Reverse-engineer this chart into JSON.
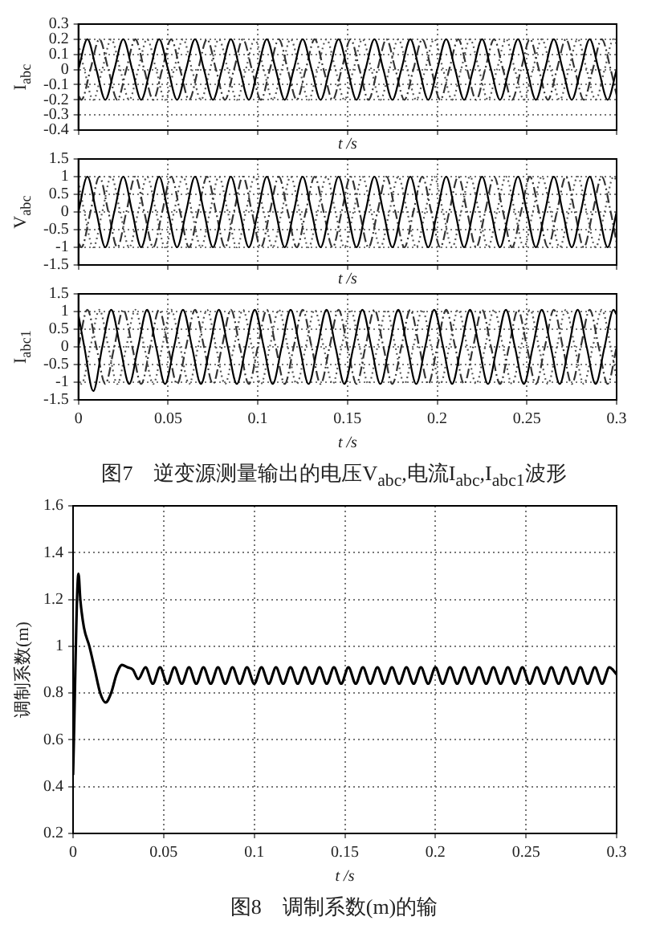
{
  "chart_data": [
    {
      "type": "line",
      "xlabel": "t /s",
      "ylabel": "I$_{abc}$",
      "xlim": [
        0,
        0.3
      ],
      "ylim": [
        -0.4,
        0.3
      ],
      "xticks": [
        0,
        0.05,
        0.1,
        0.15,
        0.2,
        0.25,
        0.3
      ],
      "yticks": [
        -0.4,
        -0.3,
        -0.2,
        -0.1,
        0,
        0.1,
        0.2,
        0.3
      ],
      "grid": true,
      "tick_labels": "y",
      "series": [
        {
          "color": "#000000",
          "line_style": "solid",
          "x": [
            0,
            0.005,
            0.01,
            0.015,
            0.02,
            0.025,
            0.03,
            0.035,
            0.04,
            0.045,
            0.05,
            0.055,
            0.06,
            0.065,
            0.07,
            0.075,
            0.08,
            0.085,
            0.09,
            0.095,
            0.1,
            0.105,
            0.11,
            0.115,
            0.12,
            0.125,
            0.13,
            0.135,
            0.14,
            0.145,
            0.15,
            0.155,
            0.16,
            0.165,
            0.17,
            0.175,
            0.18,
            0.185,
            0.19,
            0.195,
            0.2,
            0.205,
            0.21,
            0.215,
            0.22,
            0.225,
            0.23,
            0.235,
            0.24,
            0.245,
            0.25,
            0.255,
            0.26,
            0.265,
            0.27,
            0.275,
            0.28,
            0.285,
            0.29,
            0.295,
            0.3
          ],
          "values": [
            0,
            0.2,
            0,
            -0.2,
            0,
            0.2,
            0,
            -0.2,
            0,
            0.2,
            0,
            -0.2,
            0,
            0.2,
            0,
            -0.2,
            0,
            0.2,
            0,
            -0.2,
            0,
            0.2,
            0,
            -0.2,
            0,
            0.2,
            0,
            -0.2,
            0,
            0.2,
            0,
            -0.2,
            0,
            0.2,
            0,
            -0.2,
            0,
            0.2,
            0,
            -0.2,
            0,
            0.2,
            0,
            -0.2,
            0,
            0.2,
            0,
            -0.2,
            0,
            0.2,
            0,
            -0.2,
            0,
            0.2,
            0,
            -0.2,
            0,
            0.2,
            0,
            -0.2,
            0
          ]
        },
        {
          "color": "#333333",
          "line_style": "dashed",
          "x": [
            0,
            0.0017,
            0.0067,
            0.0117,
            0.0167,
            0.0217,
            0.0267,
            0.0317,
            0.0367,
            0.0417,
            0.0467,
            0.0517,
            0.0567,
            0.0617,
            0.0667,
            0.0717,
            0.0767,
            0.0817,
            0.0867,
            0.0917,
            0.0967,
            0.1017,
            0.1067,
            0.1117,
            0.1167,
            0.1217,
            0.1267,
            0.1317,
            0.1367,
            0.1417,
            0.1467,
            0.1517,
            0.1567,
            0.1617,
            0.1667,
            0.1717,
            0.1767,
            0.1817,
            0.1867,
            0.1917,
            0.1967,
            0.2017,
            0.2067,
            0.2117,
            0.2167,
            0.2217,
            0.2267,
            0.2317,
            0.2367,
            0.2417,
            0.2467,
            0.2517,
            0.2567,
            0.2617,
            0.2667,
            0.2717,
            0.2767,
            0.2817,
            0.2867,
            0.2917,
            0.2967,
            0.3
          ],
          "values": [
            -0.17,
            -0.2,
            0,
            0.2,
            0,
            -0.2,
            0,
            0.2,
            0,
            -0.2,
            0,
            0.2,
            0,
            -0.2,
            0,
            0.2,
            0,
            -0.2,
            0,
            0.2,
            0,
            -0.2,
            0,
            0.2,
            0,
            -0.2,
            0,
            0.2,
            0,
            -0.2,
            0,
            0.2,
            0,
            -0.2,
            0,
            0.2,
            0,
            -0.2,
            0,
            0.2,
            0,
            -0.2,
            0,
            0.2,
            0,
            -0.2,
            0,
            0.2,
            0,
            -0.2,
            0,
            0.2,
            0,
            -0.2,
            0,
            0.2,
            0,
            -0.2,
            0,
            0.2,
            0,
            -0.17
          ]
        },
        {
          "color": "#555555",
          "line_style": "dotted",
          "x": [
            0,
            0.0033,
            0.0083,
            0.0133,
            0.0183,
            0.0233,
            0.0283,
            0.0333,
            0.0383,
            0.0433,
            0.0483,
            0.0533,
            0.0583,
            0.0633,
            0.0683,
            0.0733,
            0.0783,
            0.0833,
            0.0883,
            0.0933,
            0.0983,
            0.1033,
            0.1083,
            0.1133,
            0.1183,
            0.1233,
            0.1283,
            0.1333,
            0.1383,
            0.1433,
            0.1483,
            0.1533,
            0.1583,
            0.1633,
            0.1683,
            0.1733,
            0.1783,
            0.1833,
            0.1883,
            0.1933,
            0.1983,
            0.2033,
            0.2083,
            0.2133,
            0.2183,
            0.2233,
            0.2283,
            0.2333,
            0.2383,
            0.2433,
            0.2483,
            0.2533,
            0.2583,
            0.2633,
            0.2683,
            0.2733,
            0.2783,
            0.2833,
            0.2883,
            0.2933,
            0.2983,
            0.3
          ],
          "values": [
            0.17,
            0,
            -0.2,
            0,
            0.2,
            0,
            -0.2,
            0,
            0.2,
            0,
            -0.2,
            0,
            0.2,
            0,
            -0.2,
            0,
            0.2,
            0,
            -0.2,
            0,
            0.2,
            0,
            -0.2,
            0,
            0.2,
            0,
            -0.2,
            0,
            0.2,
            0,
            -0.2,
            0,
            0.2,
            0,
            -0.2,
            0,
            0.2,
            0,
            -0.2,
            0,
            0.2,
            0,
            -0.2,
            0,
            0.2,
            0,
            -0.2,
            0,
            0.2,
            0,
            -0.2,
            0,
            0.2,
            0,
            -0.2,
            0,
            0.2,
            0,
            -0.2,
            0,
            0.2,
            0.17
          ]
        }
      ]
    },
    {
      "type": "line",
      "xlabel": "t /s",
      "ylabel": "V$_{abc}$",
      "xlim": [
        0,
        0.3
      ],
      "ylim": [
        -1.5,
        1.5
      ],
      "xticks": [
        0,
        0.05,
        0.1,
        0.15,
        0.2,
        0.25,
        0.3
      ],
      "yticks": [
        -1.5,
        -1,
        -0.5,
        0,
        0.5,
        1,
        1.5
      ],
      "grid": true,
      "tick_labels": "y",
      "series": [
        {
          "color": "#000000",
          "line_style": "solid",
          "x": [
            0,
            0.005,
            0.01,
            0.015,
            0.02,
            0.025,
            0.03,
            0.035,
            0.04,
            0.045,
            0.05,
            0.055,
            0.06,
            0.065,
            0.07,
            0.075,
            0.08,
            0.085,
            0.09,
            0.095,
            0.1,
            0.105,
            0.11,
            0.115,
            0.12,
            0.125,
            0.13,
            0.135,
            0.14,
            0.145,
            0.15,
            0.155,
            0.16,
            0.165,
            0.17,
            0.175,
            0.18,
            0.185,
            0.19,
            0.195,
            0.2,
            0.205,
            0.21,
            0.215,
            0.22,
            0.225,
            0.23,
            0.235,
            0.24,
            0.245,
            0.25,
            0.255,
            0.26,
            0.265,
            0.27,
            0.275,
            0.28,
            0.285,
            0.29,
            0.295,
            0.3
          ],
          "values": [
            0,
            1,
            0,
            -1,
            0,
            1,
            0,
            -1,
            0,
            1,
            0,
            -1,
            0,
            1,
            0,
            -1,
            0,
            1,
            0,
            -1,
            0,
            1,
            0,
            -1,
            0,
            1,
            0,
            -1,
            0,
            1,
            0,
            -1,
            0,
            1,
            0,
            -1,
            0,
            1,
            0,
            -1,
            0,
            1,
            0,
            -1,
            0,
            1,
            0,
            -1,
            0,
            1,
            0,
            -1,
            0,
            1,
            0,
            -1,
            0,
            1,
            0,
            -1,
            0
          ]
        },
        {
          "color": "#333333",
          "line_style": "dashed",
          "x": [
            0,
            0.0017,
            0.0067,
            0.0117,
            0.0167,
            0.0217,
            0.0267,
            0.0317,
            0.0367,
            0.0417,
            0.0467,
            0.0517,
            0.0567,
            0.0617,
            0.0667,
            0.0717,
            0.0767,
            0.0817,
            0.0867,
            0.0917,
            0.0967,
            0.1017,
            0.1067,
            0.1117,
            0.1167,
            0.1217,
            0.1267,
            0.1317,
            0.1367,
            0.1417,
            0.1467,
            0.1517,
            0.1567,
            0.1617,
            0.1667,
            0.1717,
            0.1767,
            0.1817,
            0.1867,
            0.1917,
            0.1967,
            0.2017,
            0.2067,
            0.2117,
            0.2167,
            0.2217,
            0.2267,
            0.2317,
            0.2367,
            0.2417,
            0.2467,
            0.2517,
            0.2567,
            0.2617,
            0.2667,
            0.2717,
            0.2767,
            0.2817,
            0.2867,
            0.2917,
            0.2967,
            0.3
          ],
          "values": [
            -0.87,
            -1,
            0,
            1,
            0,
            -1,
            0,
            1,
            0,
            -1,
            0,
            1,
            0,
            -1,
            0,
            1,
            0,
            -1,
            0,
            1,
            0,
            -1,
            0,
            1,
            0,
            -1,
            0,
            1,
            0,
            -1,
            0,
            1,
            0,
            -1,
            0,
            1,
            0,
            -1,
            0,
            1,
            0,
            -1,
            0,
            1,
            0,
            -1,
            0,
            1,
            0,
            -1,
            0,
            1,
            0,
            -1,
            0,
            1,
            0,
            -1,
            0,
            1,
            0,
            -0.87
          ]
        },
        {
          "color": "#555555",
          "line_style": "dotted",
          "x": [
            0,
            0.0033,
            0.0083,
            0.0133,
            0.0183,
            0.0233,
            0.0283,
            0.0333,
            0.0383,
            0.0433,
            0.0483,
            0.0533,
            0.0583,
            0.0633,
            0.0683,
            0.0733,
            0.0783,
            0.0833,
            0.0883,
            0.0933,
            0.0983,
            0.1033,
            0.1083,
            0.1133,
            0.1183,
            0.1233,
            0.1283,
            0.1333,
            0.1383,
            0.1433,
            0.1483,
            0.1533,
            0.1583,
            0.1633,
            0.1683,
            0.1733,
            0.1783,
            0.1833,
            0.1883,
            0.1933,
            0.1983,
            0.2033,
            0.2083,
            0.2133,
            0.2183,
            0.2233,
            0.2283,
            0.2333,
            0.2383,
            0.2433,
            0.2483,
            0.2533,
            0.2583,
            0.2633,
            0.2683,
            0.2733,
            0.2783,
            0.2833,
            0.2883,
            0.2933,
            0.2983,
            0.3
          ],
          "values": [
            0.87,
            0,
            -1,
            0,
            1,
            0,
            -1,
            0,
            1,
            0,
            -1,
            0,
            1,
            0,
            -1,
            0,
            1,
            0,
            -1,
            0,
            1,
            0,
            -1,
            0,
            1,
            0,
            -1,
            0,
            1,
            0,
            -1,
            0,
            1,
            0,
            -1,
            0,
            1,
            0,
            -1,
            0,
            1,
            0,
            -1,
            0,
            1,
            0,
            -1,
            0,
            1,
            0,
            -1,
            0,
            1,
            0,
            -1,
            0,
            1,
            0,
            -1,
            0,
            1,
            0.87
          ]
        }
      ]
    },
    {
      "type": "line",
      "xlabel": "t /s",
      "ylabel": "I$_{abc1}$",
      "xlim": [
        0,
        0.3
      ],
      "ylim": [
        -1.5,
        1.5
      ],
      "xticks": [
        0,
        0.05,
        0.1,
        0.15,
        0.2,
        0.25,
        0.3
      ],
      "yticks": [
        -1.5,
        -1,
        -0.5,
        0,
        0.5,
        1,
        1.5
      ],
      "grid": true,
      "annotations": [
        "图7　逆变源测量输出的电压V$_{abc}$,电流I$_{abc}$,I$_{abc1}$波形"
      ],
      "series": [
        {
          "color": "#000000",
          "line_style": "solid",
          "x": [
            0,
            0.0033,
            0.0083,
            0.0133,
            0.0183,
            0.0233,
            0.0283,
            0.0333,
            0.0383,
            0.0433,
            0.0483,
            0.0533,
            0.0583,
            0.0633,
            0.0683,
            0.0733,
            0.0783,
            0.0833,
            0.0883,
            0.0933,
            0.0983,
            0.1033,
            0.1083,
            0.1133,
            0.1183,
            0.1233,
            0.1283,
            0.1333,
            0.1383,
            0.1433,
            0.1483,
            0.1533,
            0.1583,
            0.1633,
            0.1683,
            0.1733,
            0.1783,
            0.1833,
            0.1883,
            0.1933,
            0.1983,
            0.2033,
            0.2083,
            0.2133,
            0.2183,
            0.2233,
            0.2283,
            0.2333,
            0.2383,
            0.2433,
            0.2483,
            0.2533,
            0.2583,
            0.2633,
            0.2683,
            0.2733,
            0.2783,
            0.2833,
            0.2883,
            0.2933,
            0.2983,
            0.3
          ],
          "values": [
            0.91,
            0,
            -1.25,
            0,
            1.05,
            0,
            -1.05,
            0,
            1.05,
            0,
            -1.05,
            0,
            1.05,
            0,
            -1.05,
            0,
            1.05,
            0,
            -1.05,
            0,
            1.05,
            0,
            -1.05,
            0,
            1.05,
            0,
            -1.05,
            0,
            1.05,
            0,
            -1.05,
            0,
            1.05,
            0,
            -1.05,
            0,
            1.05,
            0,
            -1.05,
            0,
            1.05,
            0,
            -1.05,
            0,
            1.05,
            0,
            -1.05,
            0,
            1.05,
            0,
            -1.05,
            0,
            1.05,
            0,
            -1.05,
            0,
            1.05,
            0,
            -1.05,
            0,
            1.05,
            0.91
          ]
        },
        {
          "color": "#333333",
          "line_style": "dashed",
          "x": [
            0,
            0.005,
            0.01,
            0.015,
            0.02,
            0.025,
            0.03,
            0.035,
            0.04,
            0.045,
            0.05,
            0.055,
            0.06,
            0.065,
            0.07,
            0.075,
            0.08,
            0.085,
            0.09,
            0.095,
            0.1,
            0.105,
            0.11,
            0.115,
            0.12,
            0.125,
            0.13,
            0.135,
            0.14,
            0.145,
            0.15,
            0.155,
            0.16,
            0.165,
            0.17,
            0.175,
            0.18,
            0.185,
            0.19,
            0.195,
            0.2,
            0.205,
            0.21,
            0.215,
            0.22,
            0.225,
            0.23,
            0.235,
            0.24,
            0.245,
            0.25,
            0.255,
            0.26,
            0.265,
            0.27,
            0.275,
            0.28,
            0.285,
            0.29,
            0.295,
            0.3
          ],
          "values": [
            0,
            1.05,
            0,
            -1.05,
            0,
            1.05,
            0,
            -1.05,
            0,
            1.05,
            0,
            -1.05,
            0,
            1.05,
            0,
            -1.05,
            0,
            1.05,
            0,
            -1.05,
            0,
            1.05,
            0,
            -1.05,
            0,
            1.05,
            0,
            -1.05,
            0,
            1.05,
            0,
            -1.05,
            0,
            1.05,
            0,
            -1.05,
            0,
            1.05,
            0,
            -1.05,
            0,
            1.05,
            0,
            -1.05,
            0,
            1.05,
            0,
            -1.05,
            0,
            1.05,
            0,
            -1.05,
            0,
            1.05,
            0,
            -1.05,
            0,
            1.05,
            0,
            -1.05,
            0
          ]
        },
        {
          "color": "#555555",
          "line_style": "dotted",
          "x": [
            0,
            0.0017,
            0.0067,
            0.0117,
            0.0167,
            0.0217,
            0.0267,
            0.0317,
            0.0367,
            0.0417,
            0.0467,
            0.0517,
            0.0567,
            0.0617,
            0.0667,
            0.0717,
            0.0767,
            0.0817,
            0.0867,
            0.0917,
            0.0967,
            0.1017,
            0.1067,
            0.1117,
            0.1167,
            0.1217,
            0.1267,
            0.1317,
            0.1367,
            0.1417,
            0.1467,
            0.1517,
            0.1567,
            0.1617,
            0.1667,
            0.1717,
            0.1767,
            0.1817,
            0.1867,
            0.1917,
            0.1967,
            0.2017,
            0.2067,
            0.2117,
            0.2167,
            0.2217,
            0.2267,
            0.2317,
            0.2367,
            0.2417,
            0.2467,
            0.2517,
            0.2567,
            0.2617,
            0.2667,
            0.2717,
            0.2767,
            0.2817,
            0.2867,
            0.2917,
            0.2967,
            0.3
          ],
          "values": [
            -0.91,
            -1.05,
            0,
            1.05,
            0,
            -1.05,
            0,
            1.05,
            0,
            -1.05,
            0,
            1.05,
            0,
            -1.05,
            0,
            1.05,
            0,
            -1.05,
            0,
            1.05,
            0,
            -1.05,
            0,
            1.05,
            0,
            -1.05,
            0,
            1.05,
            0,
            -1.05,
            0,
            1.05,
            0,
            -1.05,
            0,
            1.05,
            0,
            -1.05,
            0,
            1.05,
            0,
            -1.05,
            0,
            1.05,
            0,
            -1.05,
            0,
            1.05,
            0,
            -1.05,
            0,
            1.05,
            0,
            -1.05,
            0,
            1.05,
            0,
            -1.05,
            0,
            1.05,
            0,
            -0.91
          ]
        }
      ]
    },
    {
      "type": "line",
      "xlabel": "t /s",
      "ylabel": "调制系数(m)",
      "xlim": [
        0,
        0.3
      ],
      "ylim": [
        0.2,
        1.6
      ],
      "xticks": [
        0,
        0.05,
        0.1,
        0.15,
        0.2,
        0.25,
        0.3
      ],
      "yticks": [
        0.2,
        0.4,
        0.6,
        0.8,
        1,
        1.2,
        1.4,
        1.6
      ],
      "grid": true,
      "annotations": [
        "图8　调制系数(m)的输"
      ],
      "series": [
        {
          "color": "#000000",
          "line_style": "solid",
          "x": [
            0,
            0.003,
            0.004,
            0.006,
            0.009,
            0.012,
            0.015,
            0.018,
            0.021,
            0.024,
            0.027,
            0.03,
            0.033,
            0.036,
            0.04,
            0.044,
            0.048,
            0.052,
            0.056,
            0.06,
            0.064,
            0.068,
            0.072,
            0.076,
            0.08,
            0.084,
            0.088,
            0.092,
            0.096,
            0.1,
            0.104,
            0.108,
            0.112,
            0.116,
            0.12,
            0.124,
            0.128,
            0.132,
            0.136,
            0.14,
            0.144,
            0.148,
            0.152,
            0.156,
            0.16,
            0.164,
            0.168,
            0.172,
            0.176,
            0.18,
            0.184,
            0.188,
            0.192,
            0.196,
            0.2,
            0.204,
            0.208,
            0.212,
            0.216,
            0.22,
            0.224,
            0.228,
            0.232,
            0.236,
            0.24,
            0.244,
            0.248,
            0.252,
            0.256,
            0.26,
            0.264,
            0.268,
            0.272,
            0.276,
            0.28,
            0.284,
            0.288,
            0.292,
            0.296,
            0.3
          ],
          "values": [
            0.45,
            1.31,
            1.2,
            1.08,
            1.0,
            0.9,
            0.8,
            0.76,
            0.8,
            0.88,
            0.92,
            0.91,
            0.9,
            0.86,
            0.91,
            0.84,
            0.91,
            0.84,
            0.91,
            0.84,
            0.91,
            0.84,
            0.91,
            0.84,
            0.91,
            0.84,
            0.91,
            0.84,
            0.91,
            0.84,
            0.91,
            0.84,
            0.91,
            0.84,
            0.91,
            0.84,
            0.91,
            0.84,
            0.91,
            0.84,
            0.91,
            0.84,
            0.91,
            0.84,
            0.91,
            0.84,
            0.91,
            0.84,
            0.91,
            0.84,
            0.91,
            0.84,
            0.91,
            0.84,
            0.91,
            0.84,
            0.91,
            0.84,
            0.91,
            0.84,
            0.91,
            0.84,
            0.91,
            0.84,
            0.91,
            0.84,
            0.91,
            0.84,
            0.91,
            0.84,
            0.91,
            0.84,
            0.91,
            0.84,
            0.91,
            0.84,
            0.91,
            0.84,
            0.91,
            0.88
          ]
        }
      ]
    }
  ]
}
